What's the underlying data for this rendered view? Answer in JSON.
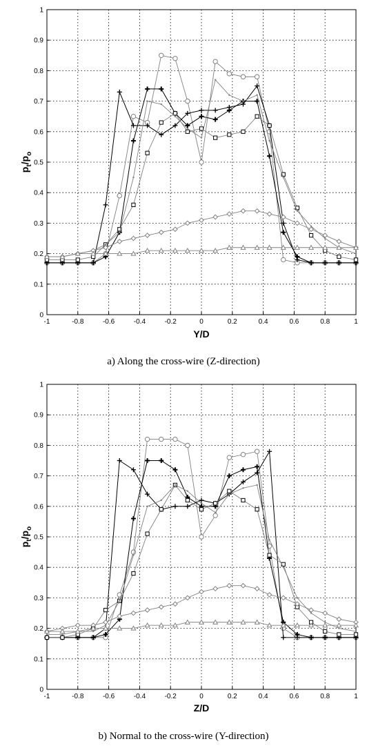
{
  "chart_data": [
    {
      "type": "line",
      "caption": "a) Along the cross-wire (Z-direction)",
      "xlabel": "Y/D",
      "ylabel_main": "p",
      "ylabel_sub1": "t",
      "ylabel_sep": "/p",
      "ylabel_sub2": "o",
      "xlim": [
        -1,
        1
      ],
      "ylim": [
        0,
        1
      ],
      "xticks": [
        "-1",
        "-0.8",
        "-0.6",
        "-0.4",
        "-0.2",
        "0",
        "0.2",
        "0.4",
        "0.6",
        "0.8",
        "1"
      ],
      "yticks": [
        "0",
        "0.1",
        "0.2",
        "0.3",
        "0.4",
        "0.5",
        "0.6",
        "0.7",
        "0.8",
        "0.9",
        "1"
      ],
      "grid": true,
      "series": [
        {
          "marker": "circle",
          "color": "#808080",
          "x": [
            -1,
            -0.9,
            -0.8,
            -0.7,
            -0.62,
            -0.53,
            -0.44,
            -0.35,
            -0.26,
            -0.17,
            -0.09,
            0,
            0.09,
            0.18,
            0.27,
            0.36,
            0.44,
            0.53,
            0.62,
            0.71,
            0.8,
            0.89,
            1
          ],
          "y": [
            0.17,
            0.17,
            0.17,
            0.17,
            0.2,
            0.39,
            0.65,
            0.63,
            0.85,
            0.84,
            0.7,
            0.5,
            0.83,
            0.79,
            0.78,
            0.78,
            0.6,
            0.18,
            0.17,
            0.17,
            0.17,
            0.17,
            0.17
          ]
        },
        {
          "marker": "plus",
          "color": "#000000",
          "x": [
            -1,
            -0.9,
            -0.8,
            -0.7,
            -0.62,
            -0.53,
            -0.44,
            -0.35,
            -0.26,
            -0.17,
            -0.09,
            0,
            0.09,
            0.18,
            0.27,
            0.36,
            0.44,
            0.53,
            0.62,
            0.71,
            0.8,
            0.89,
            1
          ],
          "y": [
            0.17,
            0.17,
            0.17,
            0.17,
            0.36,
            0.73,
            0.62,
            0.62,
            0.59,
            0.62,
            0.66,
            0.67,
            0.67,
            0.68,
            0.69,
            0.75,
            0.62,
            0.3,
            0.18,
            0.17,
            0.17,
            0.17,
            0.17
          ]
        },
        {
          "marker": "plus-bold",
          "color": "#000000",
          "x": [
            -1,
            -0.9,
            -0.8,
            -0.7,
            -0.62,
            -0.53,
            -0.44,
            -0.35,
            -0.26,
            -0.17,
            -0.09,
            0,
            0.09,
            0.18,
            0.27,
            0.36,
            0.44,
            0.53,
            0.62,
            0.71,
            0.8,
            0.89,
            1
          ],
          "y": [
            0.17,
            0.17,
            0.17,
            0.17,
            0.19,
            0.27,
            0.57,
            0.74,
            0.74,
            0.66,
            0.62,
            0.65,
            0.64,
            0.67,
            0.7,
            0.7,
            0.52,
            0.27,
            0.19,
            0.17,
            0.17,
            0.17,
            0.17
          ]
        },
        {
          "marker": "square",
          "color": "#808080",
          "x": [
            -1,
            -0.9,
            -0.8,
            -0.7,
            -0.62,
            -0.53,
            -0.44,
            -0.35,
            -0.26,
            -0.17,
            -0.09,
            0,
            0.09,
            0.18,
            0.27,
            0.36,
            0.44,
            0.53,
            0.62,
            0.71,
            0.8,
            0.89,
            1
          ],
          "y": [
            0.18,
            0.18,
            0.18,
            0.19,
            0.23,
            0.28,
            0.36,
            0.53,
            0.63,
            0.66,
            0.6,
            0.61,
            0.58,
            0.59,
            0.6,
            0.65,
            0.62,
            0.46,
            0.35,
            0.26,
            0.21,
            0.19,
            0.18
          ]
        },
        {
          "marker": "dot",
          "color": "#808080",
          "x": [
            -1,
            -0.9,
            -0.8,
            -0.7,
            -0.62,
            -0.53,
            -0.44,
            -0.35,
            -0.26,
            -0.17,
            -0.09,
            0,
            0.09,
            0.18,
            0.27,
            0.36,
            0.44,
            0.53,
            0.62,
            0.71,
            0.8,
            0.89,
            1
          ],
          "y": [
            0.19,
            0.19,
            0.2,
            0.21,
            0.23,
            0.27,
            0.45,
            0.7,
            0.69,
            0.65,
            0.61,
            0.58,
            0.77,
            0.72,
            0.7,
            0.72,
            0.57,
            0.45,
            0.34,
            0.29,
            0.25,
            0.22,
            0.2
          ]
        },
        {
          "marker": "diamond",
          "color": "#808080",
          "x": [
            -1,
            -0.9,
            -0.8,
            -0.7,
            -0.62,
            -0.53,
            -0.44,
            -0.35,
            -0.26,
            -0.17,
            -0.09,
            0,
            0.09,
            0.18,
            0.27,
            0.36,
            0.44,
            0.53,
            0.62,
            0.71,
            0.8,
            0.89,
            1
          ],
          "y": [
            0.19,
            0.19,
            0.2,
            0.21,
            0.22,
            0.24,
            0.25,
            0.26,
            0.27,
            0.28,
            0.3,
            0.31,
            0.32,
            0.33,
            0.34,
            0.34,
            0.33,
            0.32,
            0.3,
            0.28,
            0.26,
            0.24,
            0.22
          ]
        },
        {
          "marker": "triangle",
          "color": "#808080",
          "x": [
            -1,
            -0.9,
            -0.8,
            -0.7,
            -0.62,
            -0.53,
            -0.44,
            -0.35,
            -0.26,
            -0.17,
            -0.09,
            0,
            0.09,
            0.18,
            0.27,
            0.36,
            0.44,
            0.53,
            0.62,
            0.71,
            0.8,
            0.89,
            1
          ],
          "y": [
            0.19,
            0.19,
            0.2,
            0.2,
            0.2,
            0.2,
            0.2,
            0.21,
            0.21,
            0.21,
            0.21,
            0.21,
            0.21,
            0.22,
            0.22,
            0.22,
            0.22,
            0.22,
            0.22,
            0.22,
            0.22,
            0.22,
            0.22
          ]
        }
      ]
    },
    {
      "type": "line",
      "caption": "b) Normal to the cross-wire (Y-direction)",
      "xlabel": "Z/D",
      "ylabel_main": "p",
      "ylabel_sub1": "t",
      "ylabel_sep": "/p",
      "ylabel_sub2": "o",
      "xlim": [
        -1,
        1
      ],
      "ylim": [
        0,
        1
      ],
      "xticks": [
        "-1",
        "-0.8",
        "-0.6",
        "-0.4",
        "-0.2",
        "0",
        "0.2",
        "0.4",
        "0.6",
        "0.8",
        "1"
      ],
      "yticks": [
        "0",
        "0.1",
        "0.2",
        "0.3",
        "0.4",
        "0.5",
        "0.6",
        "0.7",
        "0.8",
        "0.9",
        "1"
      ],
      "grid": true,
      "series": [
        {
          "marker": "circle",
          "color": "#808080",
          "x": [
            -1,
            -0.9,
            -0.8,
            -0.7,
            -0.62,
            -0.53,
            -0.44,
            -0.35,
            -0.26,
            -0.17,
            -0.09,
            0,
            0.09,
            0.18,
            0.27,
            0.36,
            0.44,
            0.53,
            0.62,
            0.71,
            0.8,
            0.89,
            1
          ],
          "y": [
            0.17,
            0.17,
            0.17,
            0.17,
            0.17,
            0.31,
            0.45,
            0.82,
            0.82,
            0.82,
            0.8,
            0.5,
            0.57,
            0.76,
            0.77,
            0.78,
            0.47,
            0.2,
            0.17,
            0.17,
            0.17,
            0.17,
            0.17
          ]
        },
        {
          "marker": "plus",
          "color": "#000000",
          "x": [
            -1,
            -0.9,
            -0.8,
            -0.7,
            -0.62,
            -0.53,
            -0.44,
            -0.35,
            -0.26,
            -0.17,
            -0.09,
            0,
            0.09,
            0.18,
            0.27,
            0.36,
            0.44,
            0.53,
            0.62,
            0.71,
            0.8,
            0.89,
            1
          ],
          "y": [
            0.17,
            0.17,
            0.17,
            0.17,
            0.2,
            0.75,
            0.72,
            0.64,
            0.59,
            0.6,
            0.6,
            0.62,
            0.61,
            0.64,
            0.68,
            0.71,
            0.78,
            0.17,
            0.17,
            0.17,
            0.17,
            0.17,
            0.17
          ]
        },
        {
          "marker": "plus-bold",
          "color": "#000000",
          "x": [
            -1,
            -0.9,
            -0.8,
            -0.7,
            -0.62,
            -0.53,
            -0.44,
            -0.35,
            -0.26,
            -0.17,
            -0.09,
            0,
            0.09,
            0.18,
            0.27,
            0.36,
            0.44,
            0.53,
            0.62,
            0.71,
            0.8,
            0.89,
            1
          ],
          "y": [
            0.17,
            0.17,
            0.17,
            0.17,
            0.18,
            0.23,
            0.56,
            0.75,
            0.75,
            0.72,
            0.63,
            0.6,
            0.6,
            0.7,
            0.72,
            0.73,
            0.43,
            0.22,
            0.18,
            0.17,
            0.17,
            0.17,
            0.17
          ]
        },
        {
          "marker": "square",
          "color": "#808080",
          "x": [
            -1,
            -0.9,
            -0.8,
            -0.7,
            -0.62,
            -0.53,
            -0.44,
            -0.35,
            -0.26,
            -0.17,
            -0.09,
            0,
            0.09,
            0.18,
            0.27,
            0.36,
            0.44,
            0.53,
            0.62,
            0.71,
            0.8,
            0.89,
            1
          ],
          "y": [
            0.17,
            0.17,
            0.18,
            0.2,
            0.26,
            0.29,
            0.38,
            0.51,
            0.59,
            0.67,
            0.62,
            0.59,
            0.61,
            0.65,
            0.62,
            0.59,
            0.44,
            0.41,
            0.27,
            0.22,
            0.19,
            0.18,
            0.18
          ]
        },
        {
          "marker": "dot",
          "color": "#808080",
          "x": [
            -1,
            -0.9,
            -0.8,
            -0.7,
            -0.62,
            -0.53,
            -0.44,
            -0.35,
            -0.26,
            -0.17,
            -0.09,
            0,
            0.09,
            0.18,
            0.27,
            0.36,
            0.44,
            0.53,
            0.62,
            0.71,
            0.8,
            0.89,
            1
          ],
          "y": [
            0.18,
            0.18,
            0.19,
            0.19,
            0.21,
            0.29,
            0.44,
            0.6,
            0.62,
            0.67,
            0.65,
            0.61,
            0.58,
            0.64,
            0.66,
            0.67,
            0.49,
            0.4,
            0.3,
            0.25,
            0.22,
            0.2,
            0.19
          ]
        },
        {
          "marker": "diamond",
          "color": "#808080",
          "x": [
            -1,
            -0.9,
            -0.8,
            -0.7,
            -0.62,
            -0.53,
            -0.44,
            -0.35,
            -0.26,
            -0.17,
            -0.09,
            0,
            0.09,
            0.18,
            0.27,
            0.36,
            0.44,
            0.53,
            0.62,
            0.71,
            0.8,
            0.89,
            1
          ],
          "y": [
            0.19,
            0.2,
            0.21,
            0.21,
            0.22,
            0.24,
            0.25,
            0.26,
            0.27,
            0.28,
            0.3,
            0.32,
            0.33,
            0.34,
            0.34,
            0.33,
            0.31,
            0.3,
            0.28,
            0.26,
            0.25,
            0.23,
            0.22
          ]
        },
        {
          "marker": "triangle",
          "color": "#808080",
          "x": [
            -1,
            -0.9,
            -0.8,
            -0.7,
            -0.62,
            -0.53,
            -0.44,
            -0.35,
            -0.26,
            -0.17,
            -0.09,
            0,
            0.09,
            0.18,
            0.27,
            0.36,
            0.44,
            0.53,
            0.62,
            0.71,
            0.8,
            0.89,
            1
          ],
          "y": [
            0.19,
            0.19,
            0.19,
            0.2,
            0.2,
            0.2,
            0.2,
            0.21,
            0.21,
            0.21,
            0.22,
            0.22,
            0.22,
            0.22,
            0.22,
            0.22,
            0.21,
            0.21,
            0.21,
            0.21,
            0.21,
            0.21,
            0.21
          ]
        }
      ]
    }
  ]
}
